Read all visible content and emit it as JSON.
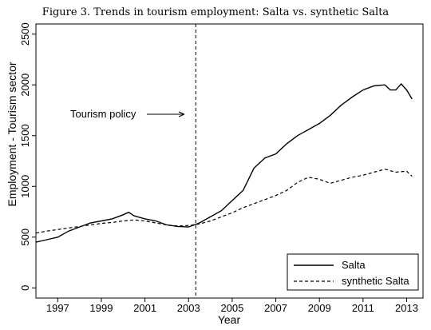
{
  "figure_title": "Figure 3. Trends in tourism employment: Salta vs. synthetic Salta",
  "chart_data": {
    "type": "line",
    "title": "Figure 3. Trends in tourism employment: Salta vs. synthetic Salta",
    "xlabel": "Year",
    "ylabel": "Employment - Tourism sector",
    "xlim": [
      1996.0,
      2013.75
    ],
    "ylim": [
      -100,
      2600
    ],
    "xticks": [
      1997,
      1999,
      2001,
      2003,
      2005,
      2007,
      2009,
      2011,
      2013
    ],
    "yticks": [
      0,
      500,
      1000,
      1500,
      2000,
      2500
    ],
    "grid": false,
    "legend_position": "bottom-right",
    "annotation": {
      "text": "Tourism policy",
      "arrow_to_year": 2003.33
    },
    "vertical_line_year": 2003.33,
    "series": [
      {
        "name": "Salta",
        "style": "solid",
        "points": [
          [
            1996.0,
            450
          ],
          [
            1996.5,
            475
          ],
          [
            1997.0,
            500
          ],
          [
            1997.5,
            560
          ],
          [
            1998.0,
            600
          ],
          [
            1998.5,
            640
          ],
          [
            1999.0,
            660
          ],
          [
            1999.5,
            680
          ],
          [
            2000.0,
            720
          ],
          [
            2000.25,
            745
          ],
          [
            2000.5,
            710
          ],
          [
            2001.0,
            680
          ],
          [
            2001.5,
            660
          ],
          [
            2002.0,
            620
          ],
          [
            2002.5,
            605
          ],
          [
            2003.0,
            600
          ],
          [
            2003.5,
            640
          ],
          [
            2004.0,
            700
          ],
          [
            2004.5,
            760
          ],
          [
            2005.0,
            860
          ],
          [
            2005.5,
            960
          ],
          [
            2006.0,
            1180
          ],
          [
            2006.5,
            1280
          ],
          [
            2007.0,
            1320
          ],
          [
            2007.5,
            1420
          ],
          [
            2008.0,
            1500
          ],
          [
            2008.5,
            1560
          ],
          [
            2009.0,
            1620
          ],
          [
            2009.5,
            1700
          ],
          [
            2010.0,
            1800
          ],
          [
            2010.5,
            1880
          ],
          [
            2011.0,
            1950
          ],
          [
            2011.5,
            1990
          ],
          [
            2012.0,
            2000
          ],
          [
            2012.25,
            1950
          ],
          [
            2012.5,
            1950
          ],
          [
            2012.75,
            2010
          ],
          [
            2013.0,
            1950
          ],
          [
            2013.25,
            1860
          ]
        ]
      },
      {
        "name": "synthetic Salta",
        "style": "dashed",
        "points": [
          [
            1996.0,
            540
          ],
          [
            1996.5,
            560
          ],
          [
            1997.0,
            575
          ],
          [
            1997.5,
            590
          ],
          [
            1998.0,
            605
          ],
          [
            1998.5,
            620
          ],
          [
            1999.0,
            635
          ],
          [
            1999.5,
            645
          ],
          [
            2000.0,
            660
          ],
          [
            2000.5,
            670
          ],
          [
            2001.0,
            660
          ],
          [
            2001.5,
            640
          ],
          [
            2002.0,
            620
          ],
          [
            2002.5,
            610
          ],
          [
            2003.0,
            615
          ],
          [
            2003.5,
            630
          ],
          [
            2004.0,
            660
          ],
          [
            2004.5,
            700
          ],
          [
            2005.0,
            740
          ],
          [
            2005.5,
            790
          ],
          [
            2006.0,
            830
          ],
          [
            2006.5,
            870
          ],
          [
            2007.0,
            910
          ],
          [
            2007.5,
            960
          ],
          [
            2008.0,
            1040
          ],
          [
            2008.5,
            1090
          ],
          [
            2009.0,
            1070
          ],
          [
            2009.5,
            1030
          ],
          [
            2010.0,
            1060
          ],
          [
            2010.5,
            1090
          ],
          [
            2011.0,
            1110
          ],
          [
            2011.5,
            1140
          ],
          [
            2012.0,
            1170
          ],
          [
            2012.5,
            1140
          ],
          [
            2013.0,
            1150
          ],
          [
            2013.25,
            1100
          ]
        ]
      }
    ]
  }
}
